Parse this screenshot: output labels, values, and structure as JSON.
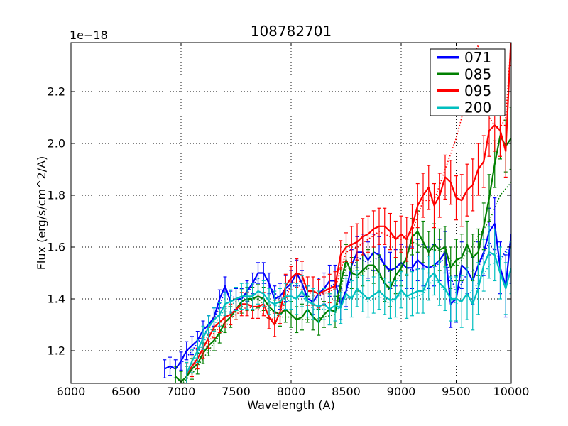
{
  "title": "108782701",
  "offset_text": "1e−18",
  "xlabel": "Wavelength (A)",
  "ylabel": "Flux (erg/s/cm^2/A)",
  "legend": {
    "position": "upper right",
    "entries": [
      {
        "label": "071",
        "color": "#0000ff"
      },
      {
        "label": "085",
        "color": "#008000"
      },
      {
        "label": "095",
        "color": "#ff0000"
      },
      {
        "label": "200",
        "color": "#00bfbf"
      }
    ]
  },
  "chart_data": {
    "type": "line",
    "title": "108782701",
    "xlabel": "Wavelength (A)",
    "ylabel": "Flux (erg/s/cm^2/A)",
    "y_scale_offset": "1e-18",
    "xlim": [
      6000,
      10000
    ],
    "ylim": [
      1.074,
      2.389
    ],
    "xticks": [
      6000,
      6500,
      7000,
      7500,
      8000,
      8500,
      9000,
      9500,
      10000
    ],
    "xtick_labels": [
      "6000",
      "6500",
      "7000",
      "7500",
      "8000",
      "8500",
      "9000",
      "9500",
      "10000"
    ],
    "yticks": [
      1.2,
      1.4,
      1.6,
      1.8,
      2.0,
      2.2
    ],
    "ytick_labels": [
      "1.2",
      "1.4",
      "1.6",
      "1.8",
      "2.0",
      "2.2"
    ],
    "grid": "dotted",
    "legend_position": "upper right",
    "series": [
      {
        "name": "071",
        "color": "#0000ff",
        "style": "solid",
        "errorbars": true,
        "x": [
          6850,
          6900,
          6950,
          7000,
          7050,
          7100,
          7150,
          7200,
          7250,
          7300,
          7350,
          7400,
          7450,
          7500,
          7550,
          7600,
          7650,
          7700,
          7750,
          7800,
          7850,
          7900,
          7950,
          8000,
          8050,
          8100,
          8150,
          8200,
          8250,
          8300,
          8350,
          8400,
          8450,
          8500,
          8550,
          8600,
          8650,
          8700,
          8750,
          8800,
          8850,
          8900,
          8950,
          9000,
          9050,
          9100,
          9150,
          9200,
          9250,
          9300,
          9350,
          9400,
          9450,
          9500,
          9550,
          9600,
          9650,
          9700,
          9750,
          9800,
          9850,
          9900,
          9950,
          10000
        ],
        "y": [
          1.13,
          1.14,
          1.13,
          1.16,
          1.2,
          1.22,
          1.24,
          1.28,
          1.3,
          1.33,
          1.4,
          1.45,
          1.39,
          1.4,
          1.4,
          1.43,
          1.46,
          1.5,
          1.5,
          1.46,
          1.4,
          1.41,
          1.44,
          1.46,
          1.5,
          1.46,
          1.4,
          1.39,
          1.42,
          1.44,
          1.47,
          1.47,
          1.38,
          1.43,
          1.53,
          1.58,
          1.58,
          1.55,
          1.58,
          1.57,
          1.53,
          1.51,
          1.52,
          1.54,
          1.52,
          1.52,
          1.55,
          1.53,
          1.52,
          1.53,
          1.55,
          1.58,
          1.38,
          1.4,
          1.53,
          1.51,
          1.47,
          1.53,
          1.58,
          1.66,
          1.69,
          1.52,
          1.45,
          1.65
        ],
        "yerr": [
          0.035,
          0.035,
          0.035,
          0.035,
          0.035,
          0.035,
          0.035,
          0.035,
          0.035,
          0.035,
          0.035,
          0.035,
          0.04,
          0.04,
          0.04,
          0.04,
          0.04,
          0.04,
          0.04,
          0.04,
          0.05,
          0.05,
          0.05,
          0.05,
          0.05,
          0.05,
          0.05,
          0.05,
          0.06,
          0.06,
          0.06,
          0.06,
          0.06,
          0.06,
          0.06,
          0.06,
          0.07,
          0.07,
          0.07,
          0.07,
          0.07,
          0.07,
          0.07,
          0.07,
          0.08,
          0.08,
          0.08,
          0.08,
          0.08,
          0.08,
          0.08,
          0.08,
          0.09,
          0.09,
          0.09,
          0.09,
          0.09,
          0.09,
          0.09,
          0.09,
          0.1,
          0.1,
          0.12,
          0.19
        ]
      },
      {
        "name": "085",
        "color": "#008000",
        "style": "solid",
        "errorbars": true,
        "x": [
          6950,
          7000,
          7050,
          7100,
          7150,
          7200,
          7250,
          7300,
          7350,
          7400,
          7450,
          7500,
          7550,
          7600,
          7650,
          7700,
          7750,
          7800,
          7850,
          7900,
          7950,
          8000,
          8050,
          8100,
          8150,
          8200,
          8250,
          8300,
          8350,
          8400,
          8450,
          8500,
          8550,
          8600,
          8650,
          8700,
          8750,
          8800,
          8850,
          8900,
          8950,
          9000,
          9050,
          9100,
          9150,
          9200,
          9250,
          9300,
          9350,
          9400,
          9450,
          9500,
          9550,
          9600,
          9650,
          9700,
          9750,
          9800,
          9850,
          9900,
          9950,
          10000
        ],
        "y": [
          1.1,
          1.08,
          1.1,
          1.13,
          1.15,
          1.19,
          1.22,
          1.24,
          1.27,
          1.31,
          1.33,
          1.36,
          1.39,
          1.4,
          1.4,
          1.41,
          1.4,
          1.37,
          1.35,
          1.34,
          1.36,
          1.34,
          1.32,
          1.33,
          1.36,
          1.33,
          1.31,
          1.34,
          1.36,
          1.35,
          1.46,
          1.55,
          1.5,
          1.49,
          1.51,
          1.53,
          1.53,
          1.5,
          1.46,
          1.44,
          1.49,
          1.52,
          1.56,
          1.64,
          1.66,
          1.62,
          1.58,
          1.61,
          1.59,
          1.6,
          1.52,
          1.55,
          1.56,
          1.61,
          1.56,
          1.58,
          1.68,
          1.79,
          1.92,
          2.03,
          1.99,
          2.02
        ],
        "yerr": [
          0.04,
          0.04,
          0.04,
          0.04,
          0.04,
          0.04,
          0.04,
          0.04,
          0.04,
          0.04,
          0.04,
          0.04,
          0.045,
          0.045,
          0.045,
          0.045,
          0.045,
          0.045,
          0.045,
          0.045,
          0.05,
          0.05,
          0.05,
          0.05,
          0.05,
          0.05,
          0.05,
          0.05,
          0.06,
          0.06,
          0.06,
          0.06,
          0.06,
          0.06,
          0.06,
          0.06,
          0.07,
          0.07,
          0.07,
          0.07,
          0.07,
          0.07,
          0.07,
          0.07,
          0.08,
          0.08,
          0.08,
          0.08,
          0.08,
          0.08,
          0.08,
          0.08,
          0.09,
          0.09,
          0.09,
          0.09,
          0.09,
          0.09,
          0.09,
          0.09,
          0.1,
          0.12
        ]
      },
      {
        "name": "095",
        "color": "#ff0000",
        "style": "solid",
        "errorbars": true,
        "x": [
          7050,
          7100,
          7150,
          7200,
          7250,
          7300,
          7350,
          7400,
          7450,
          7500,
          7550,
          7600,
          7650,
          7700,
          7750,
          7800,
          7850,
          7900,
          7950,
          8000,
          8050,
          8100,
          8150,
          8200,
          8250,
          8300,
          8350,
          8400,
          8450,
          8500,
          8550,
          8600,
          8650,
          8700,
          8750,
          8800,
          8850,
          8900,
          8950,
          9000,
          9050,
          9100,
          9150,
          9200,
          9250,
          9300,
          9350,
          9400,
          9450,
          9500,
          9550,
          9600,
          9650,
          9700,
          9750,
          9800,
          9850,
          9900,
          9950,
          10000
        ],
        "y": [
          1.11,
          1.14,
          1.17,
          1.21,
          1.25,
          1.29,
          1.31,
          1.33,
          1.34,
          1.36,
          1.38,
          1.38,
          1.37,
          1.37,
          1.38,
          1.33,
          1.3,
          1.35,
          1.45,
          1.48,
          1.5,
          1.49,
          1.43,
          1.43,
          1.42,
          1.43,
          1.44,
          1.45,
          1.57,
          1.6,
          1.61,
          1.62,
          1.64,
          1.65,
          1.67,
          1.68,
          1.68,
          1.66,
          1.63,
          1.65,
          1.63,
          1.68,
          1.76,
          1.8,
          1.83,
          1.76,
          1.8,
          1.87,
          1.85,
          1.79,
          1.78,
          1.82,
          1.84,
          1.9,
          1.93,
          2.05,
          2.07,
          2.05,
          1.97,
          2.42
        ],
        "yerr": [
          0.04,
          0.04,
          0.04,
          0.04,
          0.04,
          0.04,
          0.04,
          0.04,
          0.04,
          0.04,
          0.045,
          0.045,
          0.045,
          0.045,
          0.045,
          0.045,
          0.045,
          0.045,
          0.045,
          0.045,
          0.055,
          0.055,
          0.055,
          0.055,
          0.055,
          0.055,
          0.055,
          0.055,
          0.055,
          0.055,
          0.07,
          0.07,
          0.07,
          0.07,
          0.07,
          0.07,
          0.07,
          0.07,
          0.07,
          0.07,
          0.085,
          0.085,
          0.085,
          0.085,
          0.085,
          0.085,
          0.085,
          0.085,
          0.085,
          0.085,
          0.1,
          0.1,
          0.1,
          0.1,
          0.1,
          0.1,
          0.1,
          0.1,
          0.1,
          0.12
        ]
      },
      {
        "name": "200",
        "color": "#00bfbf",
        "style": "solid",
        "errorbars": true,
        "x": [
          7050,
          7100,
          7150,
          7200,
          7250,
          7300,
          7350,
          7400,
          7450,
          7500,
          7550,
          7600,
          7650,
          7700,
          7750,
          7800,
          7850,
          7900,
          7950,
          8000,
          8050,
          8100,
          8150,
          8200,
          8250,
          8300,
          8350,
          8400,
          8450,
          8500,
          8550,
          8600,
          8650,
          8700,
          8750,
          8800,
          8850,
          8900,
          8950,
          9000,
          9050,
          9100,
          9150,
          9200,
          9250,
          9300,
          9350,
          9400,
          9450,
          9500,
          9550,
          9600,
          9650,
          9700,
          9750,
          9800,
          9850,
          9900,
          9950,
          10000
        ],
        "y": [
          1.11,
          1.16,
          1.2,
          1.25,
          1.29,
          1.32,
          1.34,
          1.38,
          1.39,
          1.4,
          1.41,
          1.41,
          1.41,
          1.43,
          1.42,
          1.39,
          1.38,
          1.39,
          1.41,
          1.41,
          1.4,
          1.43,
          1.39,
          1.38,
          1.37,
          1.38,
          1.36,
          1.375,
          1.365,
          1.42,
          1.4,
          1.44,
          1.42,
          1.4,
          1.415,
          1.43,
          1.41,
          1.395,
          1.4,
          1.435,
          1.41,
          1.42,
          1.43,
          1.43,
          1.48,
          1.5,
          1.46,
          1.44,
          1.4,
          1.4,
          1.39,
          1.42,
          1.38,
          1.44,
          1.53,
          1.58,
          1.57,
          1.5,
          1.44,
          1.52
        ],
        "yerr": [
          0.045,
          0.045,
          0.045,
          0.045,
          0.045,
          0.045,
          0.045,
          0.045,
          0.045,
          0.045,
          0.05,
          0.05,
          0.05,
          0.05,
          0.05,
          0.05,
          0.05,
          0.05,
          0.05,
          0.05,
          0.06,
          0.06,
          0.06,
          0.06,
          0.06,
          0.06,
          0.06,
          0.06,
          0.06,
          0.06,
          0.07,
          0.07,
          0.07,
          0.07,
          0.07,
          0.07,
          0.07,
          0.07,
          0.07,
          0.07,
          0.085,
          0.085,
          0.085,
          0.085,
          0.085,
          0.085,
          0.085,
          0.085,
          0.085,
          0.085,
          0.1,
          0.1,
          0.1,
          0.1,
          0.1,
          0.1,
          0.1,
          0.1,
          0.1,
          0.1
        ]
      },
      {
        "name": "071-dotted",
        "color": "#0000ff",
        "style": "dotted",
        "errorbars": false,
        "x": [
          6900,
          7000,
          7100,
          7200,
          7300,
          7400,
          7500,
          7600,
          7700,
          7800,
          7900,
          8000,
          8100,
          8200,
          8300,
          8400,
          8500,
          8600,
          8700,
          8800,
          8900,
          9000,
          9100,
          9200,
          9300,
          9400,
          9500,
          9600,
          9700,
          9800,
          9900,
          10000
        ],
        "y": [
          1.13,
          1.15,
          1.2,
          1.26,
          1.32,
          1.43,
          1.4,
          1.42,
          1.48,
          1.45,
          1.4,
          1.45,
          1.45,
          1.38,
          1.43,
          1.46,
          1.42,
          1.56,
          1.54,
          1.56,
          1.5,
          1.53,
          1.51,
          1.52,
          1.52,
          1.56,
          1.42,
          1.5,
          1.52,
          1.62,
          1.55,
          1.62
        ]
      },
      {
        "name": "085-dotted",
        "color": "#008000",
        "style": "dotted",
        "errorbars": false,
        "x": [
          7000,
          7100,
          7200,
          7300,
          7400,
          7500,
          7600,
          7700,
          7800,
          7900,
          8000,
          8100,
          8200,
          8300,
          8400,
          8500,
          8600,
          8700,
          8800,
          8900,
          9000,
          9100,
          9200,
          9300,
          9400,
          9500,
          9600,
          9700,
          9800,
          9900,
          10000
        ],
        "y": [
          1.07,
          1.11,
          1.17,
          1.23,
          1.29,
          1.35,
          1.39,
          1.4,
          1.36,
          1.33,
          1.33,
          1.32,
          1.32,
          1.33,
          1.34,
          1.53,
          1.48,
          1.52,
          1.49,
          1.43,
          1.5,
          1.62,
          1.6,
          1.59,
          1.58,
          1.52,
          1.58,
          1.64,
          1.7,
          1.8,
          1.85
        ]
      },
      {
        "name": "095-dotted",
        "color": "#ff0000",
        "style": "dotted",
        "errorbars": false,
        "x": [
          7100,
          7200,
          7300,
          7400,
          7500,
          7600,
          7700,
          7800,
          7900,
          8000,
          8100,
          8200,
          8300,
          8400,
          8500,
          8600,
          8700,
          8800,
          8900,
          9000,
          9100,
          9200,
          9300,
          9400,
          9500,
          9600,
          9650,
          9700,
          9750,
          9800,
          9850,
          9900,
          9950,
          10000
        ],
        "y": [
          1.13,
          1.19,
          1.27,
          1.31,
          1.34,
          1.37,
          1.36,
          1.32,
          1.33,
          1.46,
          1.47,
          1.41,
          1.42,
          1.44,
          1.58,
          1.6,
          1.63,
          1.66,
          1.64,
          1.63,
          1.66,
          1.78,
          1.78,
          1.9,
          2.02,
          2.18,
          2.32,
          2.38,
          2.28,
          2.1,
          2.07,
          2.06,
          2.1,
          2.4
        ]
      },
      {
        "name": "200-dotted",
        "color": "#00bfbf",
        "style": "dotted",
        "errorbars": false,
        "x": [
          7100,
          7200,
          7300,
          7400,
          7500,
          7600,
          7700,
          7800,
          7900,
          8000,
          8100,
          8200,
          8300,
          8400,
          8500,
          8600,
          8700,
          8800,
          8900,
          9000,
          9100,
          9200,
          9300,
          9400,
          9500,
          9600,
          9700,
          9800,
          9900,
          10000
        ],
        "y": [
          1.14,
          1.23,
          1.3,
          1.36,
          1.39,
          1.4,
          1.41,
          1.38,
          1.37,
          1.4,
          1.41,
          1.36,
          1.36,
          1.35,
          1.4,
          1.42,
          1.39,
          1.41,
          1.38,
          1.42,
          1.4,
          1.42,
          1.48,
          1.43,
          1.38,
          1.41,
          1.46,
          1.53,
          1.55,
          1.6
        ]
      }
    ]
  }
}
